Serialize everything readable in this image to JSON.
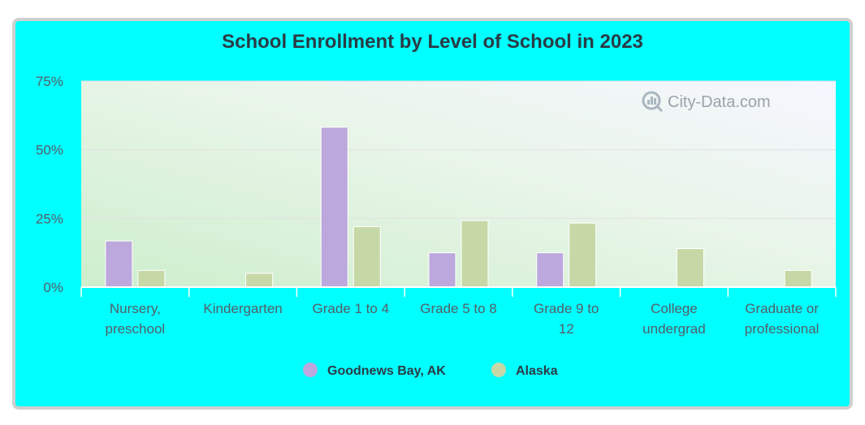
{
  "chart_data": {
    "type": "bar",
    "title": "School Enrollment by Level of School in 2023",
    "categories": [
      [
        "Nursery,",
        "preschool"
      ],
      [
        "Kindergarten"
      ],
      [
        "Grade 1 to 4"
      ],
      [
        "Grade 5 to 8"
      ],
      [
        "Grade 9 to",
        "12"
      ],
      [
        "College",
        "undergrad"
      ],
      [
        "Graduate or",
        "professional"
      ]
    ],
    "series": [
      {
        "name": "Goodnews Bay, AK",
        "color": "#bca8dc",
        "values": [
          16.8,
          0,
          58.2,
          12.5,
          12.5,
          0,
          0
        ]
      },
      {
        "name": "Alaska",
        "color": "#c6d8a6",
        "values": [
          6.1,
          5.0,
          22.0,
          24.2,
          23.3,
          14.0,
          6.1
        ]
      }
    ],
    "ylim": [
      0,
      75
    ],
    "yticks": [
      {
        "value": 0,
        "label": "0%"
      },
      {
        "value": 25,
        "label": "25%"
      },
      {
        "value": 50,
        "label": "50%"
      },
      {
        "value": 75,
        "label": "75%"
      }
    ],
    "legend_position": "bottom-center",
    "grid": true
  },
  "watermark": "City-Data.com"
}
